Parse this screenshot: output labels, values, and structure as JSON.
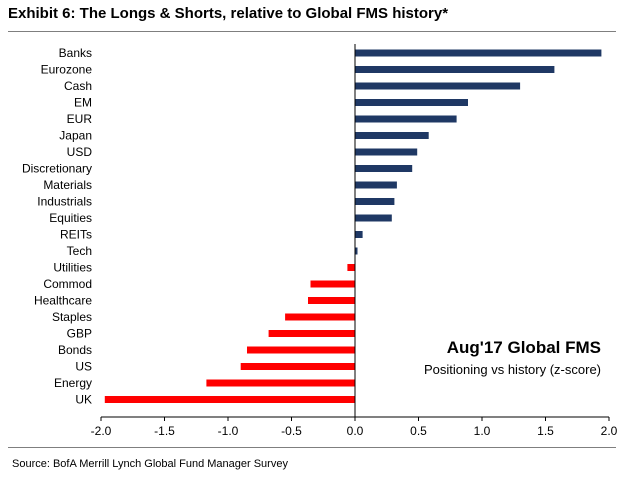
{
  "title": "Exhibit 6: The Longs & Shorts, relative to Global FMS history*",
  "source": "Source: BofA Merrill Lynch Global Fund Manager Survey",
  "colors": {
    "positive": "#1f3864",
    "negative": "#ff0000"
  },
  "chart_data": {
    "type": "bar",
    "orientation": "horizontal",
    "annotation_title": "Aug'17 Global FMS",
    "annotation_subtitle": "Positioning vs history (z-score)",
    "categories": [
      "Banks",
      "Eurozone",
      "Cash",
      "EM",
      "EUR",
      "Japan",
      "USD",
      "Discretionary",
      "Materials",
      "Industrials",
      "Equities",
      "REITs",
      "Tech",
      "Utilities",
      "Commod",
      "Healthcare",
      "Staples",
      "GBP",
      "Bonds",
      "US",
      "Energy",
      "UK"
    ],
    "values": [
      1.94,
      1.57,
      1.3,
      0.89,
      0.8,
      0.58,
      0.49,
      0.45,
      0.33,
      0.31,
      0.29,
      0.06,
      0.02,
      -0.06,
      -0.35,
      -0.37,
      -0.55,
      -0.68,
      -0.85,
      -0.9,
      -1.17,
      -1.97
    ],
    "xlim": [
      -2.0,
      2.0
    ],
    "xticks": [
      "-2.0",
      "-1.5",
      "-1.0",
      "-0.5",
      "0.0",
      "0.5",
      "1.0",
      "1.5",
      "2.0"
    ],
    "xlabel": "",
    "ylabel": ""
  }
}
